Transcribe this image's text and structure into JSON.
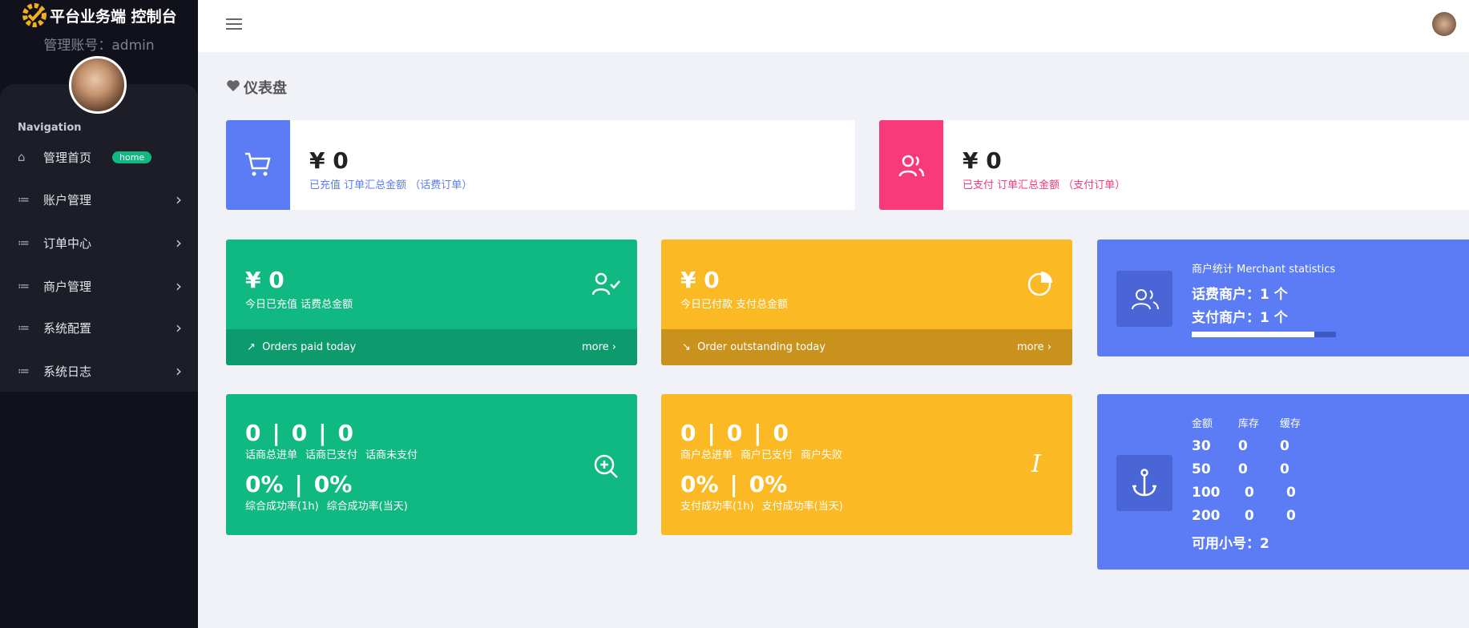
{
  "sidebar": {
    "brand": "平台业务端 控制台",
    "account": "管理账号：admin",
    "nav_heading": "Navigation",
    "items": [
      {
        "label": "管理首页",
        "badge": "home"
      },
      {
        "label": "账户管理"
      },
      {
        "label": "订单中心"
      },
      {
        "label": "商户管理"
      },
      {
        "label": "系统配置"
      },
      {
        "label": "系统日志"
      }
    ]
  },
  "page": {
    "title": "仪表盘"
  },
  "summary_cards": [
    {
      "amount": "¥ 0",
      "label": "已充值 订单汇总金额 （话费订单）"
    },
    {
      "amount": "¥ 0",
      "label": "已支付 订单汇总金额 （支付订单）"
    }
  ],
  "today_cards": [
    {
      "amount": "¥ 0",
      "label": "今日已充值 话费总金额",
      "footer": "Orders paid today",
      "more": "more"
    },
    {
      "amount": "¥ 0",
      "label": "今日已付款 支付总金额",
      "footer": "Order outstanding today",
      "more": "more"
    }
  ],
  "merchant_stats": {
    "title": "商户统计 Merchant statistics",
    "lines": [
      "话费商户：1 个",
      "支付商户：1 个"
    ]
  },
  "rate_cards": [
    {
      "counts": [
        0,
        0,
        0
      ],
      "count_labels": [
        "话商总进单",
        "话商已支付",
        "话商未支付"
      ],
      "rates": [
        "0%",
        "0%"
      ],
      "rate_labels": [
        "综合成功率(1h)",
        "综合成功率(当天)"
      ]
    },
    {
      "counts": [
        0,
        0,
        0
      ],
      "count_labels": [
        "商户总进单",
        "商户已支付",
        "商户失败"
      ],
      "rates": [
        "0%",
        "0%"
      ],
      "rate_labels": [
        "支付成功率(1h)",
        "支付成功率(当天)"
      ]
    }
  ],
  "stock_table": {
    "headers": [
      "金额",
      "库存",
      "缓存"
    ],
    "rows": [
      [
        30,
        0,
        0
      ],
      [
        50,
        0,
        0
      ],
      [
        100,
        0,
        0
      ],
      [
        200,
        0,
        0
      ]
    ],
    "footer": "可用小号：2"
  }
}
